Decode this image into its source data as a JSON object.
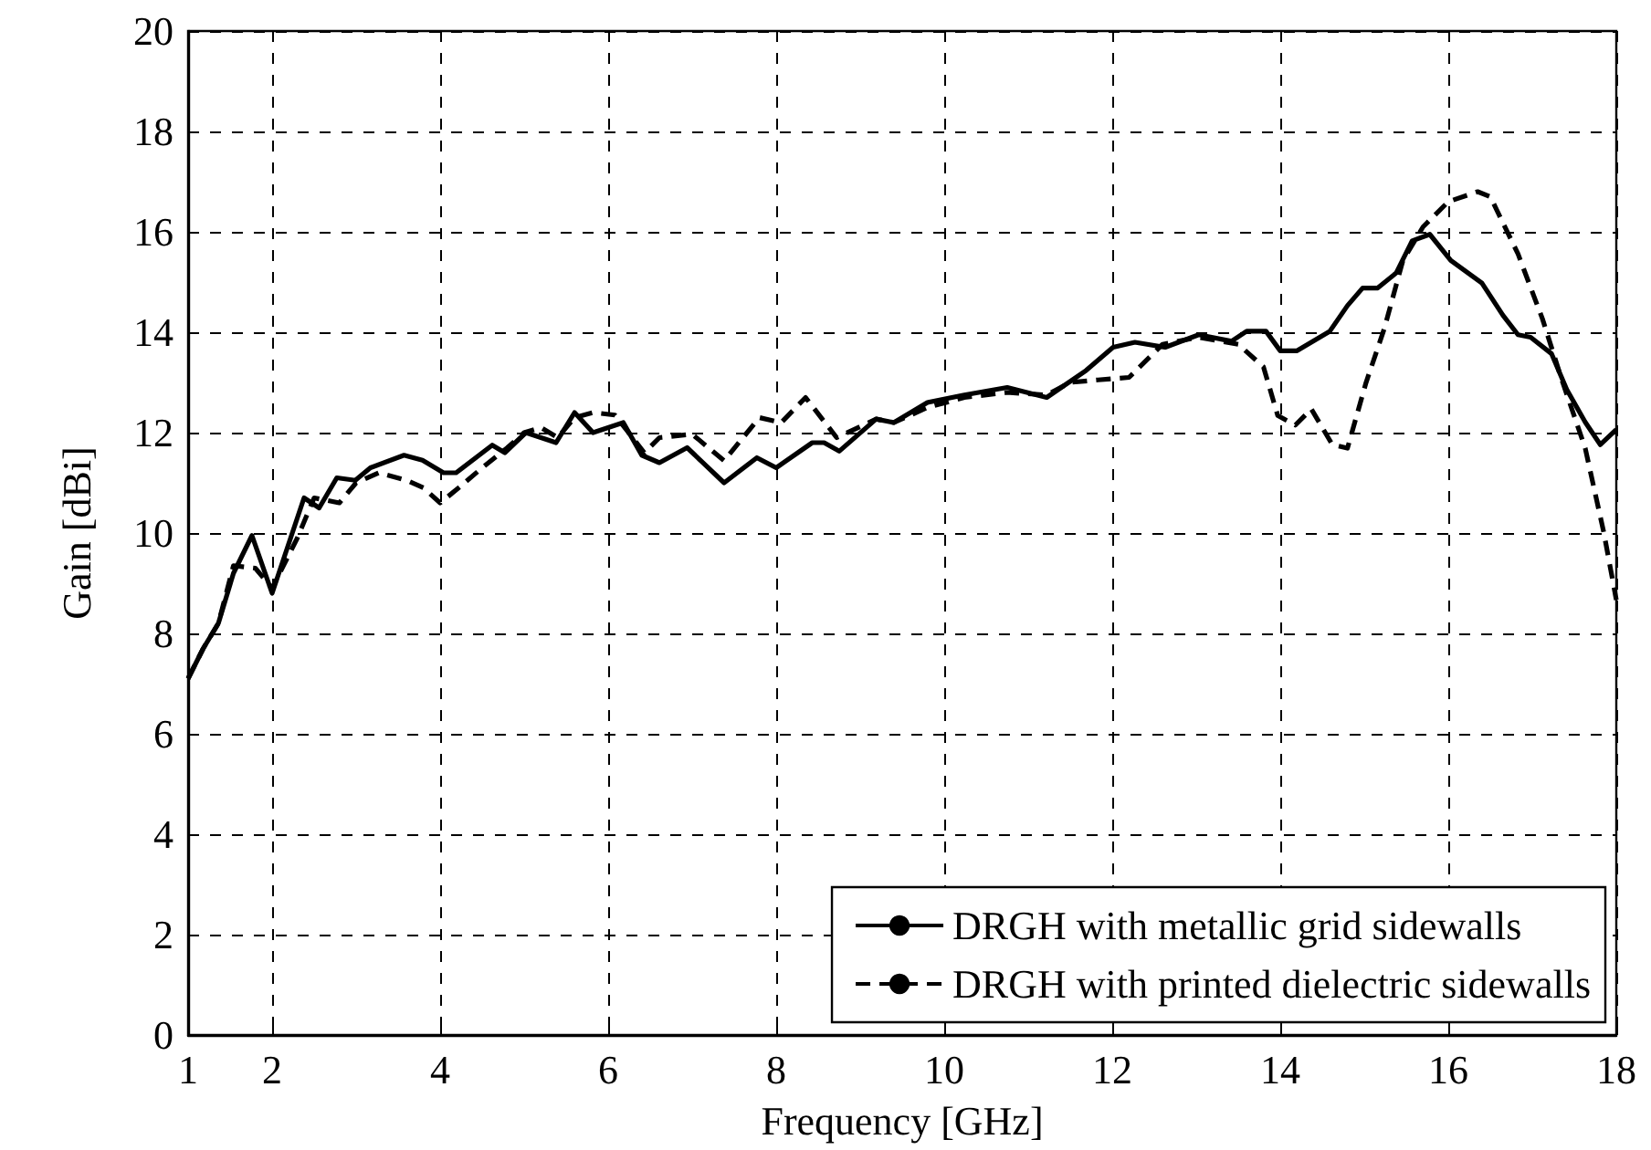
{
  "chart_data": {
    "type": "line",
    "xlabel": "Frequency [GHz]",
    "ylabel": "Gain [dBi]",
    "xlim": [
      1,
      18
    ],
    "ylim": [
      0,
      20
    ],
    "xticks": [
      1,
      2,
      4,
      6,
      8,
      10,
      12,
      14,
      16,
      18
    ],
    "yticks": [
      0,
      2,
      4,
      6,
      8,
      10,
      12,
      14,
      16,
      18,
      20
    ],
    "grid": true,
    "legend": "bottom right",
    "marker": "none",
    "series": [
      {
        "name": "DRGH with metallic grid sidewalls",
        "color": "#000000",
        "line_style": "solid",
        "x": [
          1,
          1.18,
          1.36,
          1.54,
          1.76,
          2,
          2.38,
          2.56,
          2.77,
          2.99,
          3.17,
          3.57,
          3.79,
          4.04,
          4.19,
          4.62,
          4.77,
          5.02,
          5.2,
          5.38,
          5.6,
          5.82,
          6.18,
          6.4,
          6.61,
          6.94,
          7.38,
          7.77,
          8,
          8.43,
          8.57,
          8.75,
          9.19,
          9.4,
          9.8,
          10.24,
          10.75,
          11.22,
          11.69,
          12.01,
          12.27,
          12.63,
          13.03,
          13.42,
          13.6,
          13.83,
          14,
          14.2,
          14.59,
          14.8,
          14.98,
          15.16,
          15.38,
          15.57,
          15.78,
          16.03,
          16.4,
          16.65,
          16.83,
          16.98,
          17.23,
          17.41,
          17.63,
          17.81,
          18
        ],
        "values": [
          7.1,
          7.7,
          8.2,
          9.2,
          9.95,
          8.8,
          10.7,
          10.5,
          11.1,
          11.05,
          11.3,
          11.55,
          11.45,
          11.2,
          11.2,
          11.75,
          11.6,
          12,
          11.9,
          11.8,
          12.4,
          12,
          12.2,
          11.55,
          11.4,
          11.7,
          11,
          11.5,
          11.3,
          11.8,
          11.8,
          11.63,
          12.27,
          12.2,
          12.6,
          12.75,
          12.9,
          12.7,
          13.24,
          13.7,
          13.8,
          13.7,
          13.95,
          13.82,
          14.02,
          14.02,
          13.63,
          13.63,
          14.02,
          14.53,
          14.88,
          14.88,
          15.18,
          15.82,
          15.95,
          15.43,
          14.98,
          14.34,
          13.95,
          13.9,
          13.57,
          12.86,
          12.21,
          11.76,
          12.06
        ]
      },
      {
        "name": "DRGH with printed dielectric sidewalls",
        "color": "#000000",
        "line_style": "dashed",
        "x": [
          1,
          1.18,
          1.36,
          1.54,
          1.8,
          2,
          2.3,
          2.5,
          2.8,
          3,
          3.27,
          3.6,
          3.8,
          4,
          4.22,
          4.5,
          4.8,
          5,
          5.2,
          5.4,
          5.6,
          5.82,
          6.08,
          6.43,
          6.61,
          7,
          7.38,
          7.8,
          8.06,
          8.35,
          8.72,
          9.19,
          9.4,
          9.8,
          10.24,
          10.75,
          11.22,
          11.5,
          11.83,
          12.2,
          12.6,
          13.03,
          13.5,
          13.8,
          13.97,
          14.18,
          14.37,
          14.62,
          14.8,
          15.02,
          15.24,
          15.46,
          15.7,
          16,
          16.35,
          16.5,
          16.83,
          17.12,
          17.34,
          17.63,
          17.85,
          18
        ],
        "values": [
          7.1,
          7.7,
          8.2,
          9.35,
          9.3,
          8.9,
          9.9,
          10.7,
          10.6,
          11,
          11.2,
          11.05,
          10.9,
          10.6,
          10.9,
          11.3,
          11.7,
          12,
          12.1,
          11.9,
          12.3,
          12.4,
          12.35,
          11.6,
          11.9,
          11.97,
          11.44,
          12.3,
          12.2,
          12.7,
          11.9,
          12.27,
          12.2,
          12.5,
          12.7,
          12.8,
          12.75,
          13,
          13.05,
          13.1,
          13.76,
          13.9,
          13.76,
          13.31,
          12.34,
          12.15,
          12.47,
          11.76,
          11.69,
          12.99,
          14.08,
          15.43,
          16.1,
          16.6,
          16.8,
          16.7,
          15.56,
          14.27,
          13.11,
          11.69,
          10.02,
          8.67
        ]
      }
    ]
  }
}
